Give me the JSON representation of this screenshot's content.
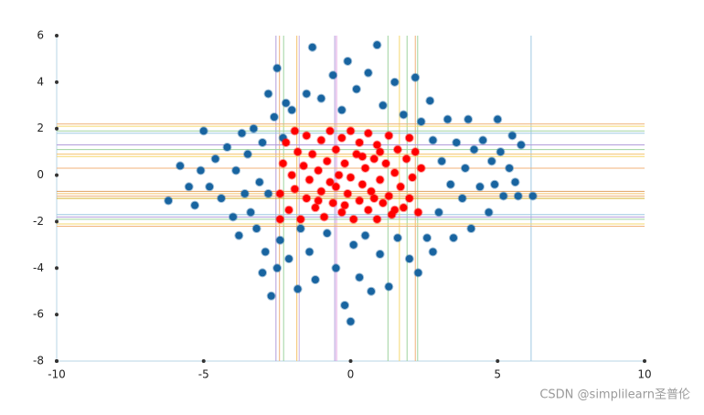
{
  "chart_data": {
    "type": "scatter",
    "xlim": [
      -10,
      10
    ],
    "ylim": [
      -8,
      6
    ],
    "xticks": [
      -10,
      -5,
      0,
      5,
      10
    ],
    "yticks": [
      -8,
      -6,
      -4,
      -2,
      0,
      2,
      4,
      6
    ],
    "series": [
      {
        "color": "#1864a0",
        "x": [
          -6.2,
          -5.8,
          -5.5,
          -5.3,
          -5.0,
          -5.1,
          -4.8,
          -4.6,
          -4.4,
          -4.2,
          -4.0,
          -3.9,
          -3.8,
          -3.7,
          -3.6,
          -3.5,
          -3.4,
          -3.3,
          -3.2,
          -3.1,
          -3.0,
          -3.0,
          -2.9,
          -2.8,
          -2.8,
          -2.7,
          -2.6,
          -2.5,
          -2.5,
          -2.4,
          -2.3,
          -2.2,
          -2.1,
          -2.0,
          -1.8,
          -1.7,
          -1.5,
          -1.4,
          -1.3,
          -1.2,
          -1.0,
          -0.8,
          -0.6,
          -0.5,
          -0.3,
          -0.2,
          -0.1,
          0.1,
          0.2,
          0.3,
          0.0,
          0.5,
          0.6,
          0.7,
          0.9,
          1.0,
          1.1,
          1.3,
          1.5,
          1.6,
          1.8,
          2.0,
          2.2,
          2.3,
          2.4,
          2.6,
          2.7,
          2.8,
          2.8,
          3.0,
          3.1,
          3.3,
          3.4,
          3.5,
          3.6,
          3.8,
          3.9,
          4.0,
          4.1,
          4.2,
          4.4,
          4.5,
          4.7,
          4.8,
          4.9,
          5.0,
          5.1,
          5.2,
          5.5,
          5.4,
          5.6,
          5.7,
          5.8,
          6.2
        ],
        "y": [
          -1.1,
          0.4,
          -0.5,
          -1.3,
          1.9,
          0.2,
          -0.5,
          0.7,
          -1.0,
          1.2,
          -1.8,
          0.2,
          -2.6,
          1.8,
          -0.8,
          0.9,
          -1.6,
          2.0,
          -2.3,
          -0.3,
          1.4,
          -4.2,
          -3.3,
          -0.8,
          3.5,
          -5.2,
          2.5,
          -4.0,
          4.6,
          -2.8,
          1.6,
          3.1,
          -3.6,
          2.8,
          -4.9,
          -2.3,
          3.5,
          -3.3,
          5.5,
          -4.5,
          3.3,
          -2.5,
          4.3,
          -4.0,
          2.8,
          -5.6,
          4.9,
          -3.0,
          3.7,
          -4.4,
          -6.3,
          -2.6,
          4.4,
          -5.0,
          5.6,
          -3.4,
          3.0,
          -4.8,
          4.0,
          -2.7,
          2.6,
          -3.6,
          4.2,
          -4.2,
          2.3,
          -2.7,
          3.2,
          1.5,
          -3.3,
          -1.6,
          0.6,
          2.4,
          -0.4,
          -2.7,
          1.4,
          -1.0,
          0.3,
          2.4,
          -2.3,
          1.1,
          -0.5,
          1.5,
          -1.6,
          0.6,
          -0.4,
          2.4,
          1.0,
          -0.9,
          1.7,
          0.3,
          -0.3,
          -0.9,
          1.3,
          -0.9
        ]
      },
      {
        "color": "#ff0000",
        "x": [
          -2.4,
          -2.3,
          -2.2,
          -2.1,
          -2.0,
          -1.9,
          -1.8,
          -1.7,
          -1.6,
          -1.5,
          -1.5,
          -1.4,
          -1.3,
          -1.2,
          -1.1,
          -1.0,
          -1.0,
          -0.9,
          -0.8,
          -0.7,
          -0.7,
          -0.6,
          -0.5,
          -0.4,
          -0.3,
          -0.3,
          -0.2,
          -0.1,
          0.0,
          0.0,
          0.1,
          0.2,
          0.3,
          0.3,
          0.4,
          0.5,
          0.6,
          0.6,
          0.7,
          0.8,
          0.9,
          0.9,
          1.0,
          1.1,
          1.2,
          1.3,
          1.3,
          1.4,
          1.5,
          1.6,
          1.7,
          1.8,
          1.9,
          2.0,
          2.0,
          2.1,
          2.2,
          2.3,
          2.4,
          -2.4,
          -1.9,
          -1.1,
          -0.5,
          0.4,
          1.0,
          1.5,
          -0.2,
          0.8
        ],
        "y": [
          -0.8,
          0.5,
          1.4,
          -1.5,
          0.0,
          -0.6,
          1.0,
          -1.9,
          0.4,
          1.7,
          -1.0,
          -0.2,
          0.9,
          -1.4,
          0.2,
          1.5,
          -0.7,
          -1.8,
          0.6,
          1.9,
          -0.3,
          -1.2,
          1.1,
          0.0,
          -1.6,
          1.6,
          0.5,
          -0.8,
          1.9,
          -0.1,
          -1.9,
          0.9,
          -1.1,
          1.4,
          -0.4,
          0.3,
          -1.5,
          1.8,
          -0.7,
          0.7,
          -1.9,
          1.3,
          -0.2,
          -1.2,
          0.5,
          1.7,
          -0.9,
          -1.7,
          0.1,
          1.1,
          -0.5,
          -1.4,
          0.7,
          1.6,
          -1.0,
          -0.1,
          1.0,
          -1.6,
          0.3,
          -1.9,
          1.9,
          -1.1,
          -0.5,
          0.8,
          1.0,
          -1.5,
          -1.3,
          -1.0
        ]
      }
    ],
    "vlines": {
      "values": [
        -2.54,
        -2.42,
        -2.28,
        -1.83,
        -1.75,
        -0.54,
        -0.48,
        1.27,
        1.66,
        1.92,
        2.2,
        2.28,
        6.14
      ],
      "colors": [
        "#b39ddb",
        "#f0b27a",
        "#9fd39f",
        "#f5c26b",
        "#c9b3e6",
        "#b39ddb",
        "#e0a0e0",
        "#9fd39f",
        "#f5d76e",
        "#9fd39f",
        "#f0b27a",
        "#9fd39f",
        "#9ec9e2"
      ]
    },
    "hlines": {
      "values": [
        2.2,
        2.1,
        1.9,
        1.8,
        1.3,
        1.1,
        0.9,
        0.8,
        0.3,
        -0.7,
        -0.8,
        -0.9,
        -1.0,
        -1.7,
        -1.8,
        -1.9,
        -2.1,
        -2.2
      ],
      "colors": [
        "#f0b27a",
        "#f5d76e",
        "#9fd39f",
        "#9ec9e2",
        "#b39ddb",
        "#9fd39f",
        "#f5c26b",
        "#f5d76e",
        "#f0b27a",
        "#e0a060",
        "#f5c26b",
        "#f0b27a",
        "#d4b02a",
        "#9ec9e2",
        "#b39ddb",
        "#9fd39f",
        "#f5d76e",
        "#f0b27a"
      ]
    }
  },
  "watermark": "CSDN @simplilearn圣普伦"
}
